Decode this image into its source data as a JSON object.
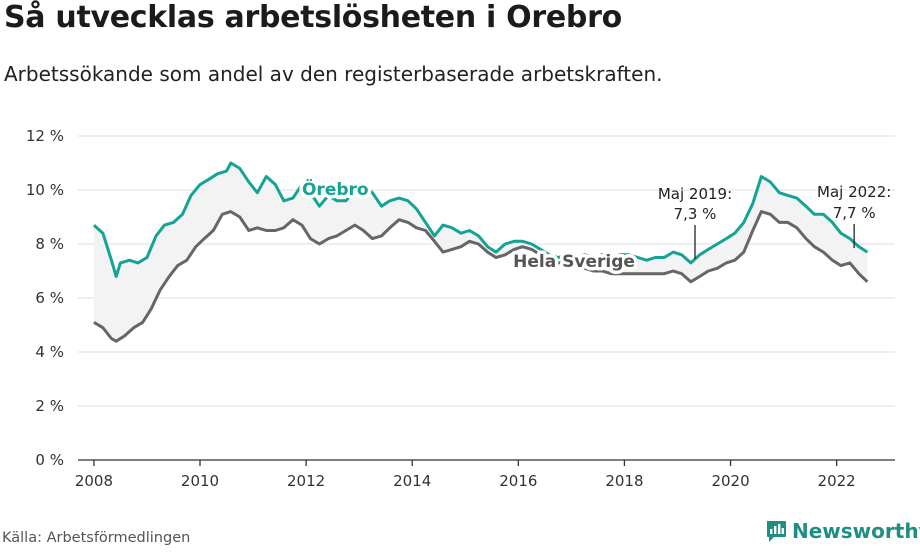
{
  "header": {
    "title": "Så utvecklas arbetslösheten i Orebro",
    "subtitle": "Arbetssökande som andel av den registerbaserade arbetskraften."
  },
  "footer": {
    "source": "Källa: Arbetsförmedlingen",
    "brand": "Newsworthy",
    "brand_icon": "chart-logo-icon"
  },
  "colors": {
    "orebro": "#14a394",
    "sverige": "#666666",
    "fill": "#f3f3f3",
    "grid": "#dddddd",
    "brand": "#1f8f84"
  },
  "chart_data": {
    "type": "line",
    "title": "Så utvecklas arbetslösheten i Orebro",
    "xlabel": "",
    "ylabel": "",
    "xlim": [
      2007.7,
      2023.1
    ],
    "ylim": [
      0,
      12
    ],
    "x_ticks": [
      2008,
      2010,
      2012,
      2014,
      2016,
      2018,
      2020,
      2022
    ],
    "x_tick_labels": [
      "2008",
      "2010",
      "2012",
      "2014",
      "2016",
      "2018",
      "2020",
      "2022"
    ],
    "y_ticks": [
      0,
      2,
      4,
      6,
      8,
      10,
      12
    ],
    "y_tick_labels": [
      "0 %",
      "2 %",
      "4 %",
      "6 %",
      "8 %",
      "10 %",
      "12 %"
    ],
    "series": [
      {
        "name": "Örebro",
        "label": "Örebro",
        "points": [
          [
            2008.0,
            8.7
          ],
          [
            2008.17,
            8.4
          ],
          [
            2008.33,
            7.4
          ],
          [
            2008.42,
            6.8
          ],
          [
            2008.5,
            7.3
          ],
          [
            2008.67,
            7.4
          ],
          [
            2008.83,
            7.3
          ],
          [
            2009.0,
            7.5
          ],
          [
            2009.17,
            8.3
          ],
          [
            2009.33,
            8.7
          ],
          [
            2009.5,
            8.8
          ],
          [
            2009.67,
            9.1
          ],
          [
            2009.83,
            9.8
          ],
          [
            2010.0,
            10.2
          ],
          [
            2010.17,
            10.4
          ],
          [
            2010.33,
            10.6
          ],
          [
            2010.5,
            10.7
          ],
          [
            2010.58,
            11.0
          ],
          [
            2010.75,
            10.8
          ],
          [
            2010.92,
            10.3
          ],
          [
            2011.08,
            9.9
          ],
          [
            2011.25,
            10.5
          ],
          [
            2011.42,
            10.2
          ],
          [
            2011.58,
            9.6
          ],
          [
            2011.75,
            9.7
          ],
          [
            2011.92,
            10.2
          ],
          [
            2012.08,
            9.9
          ],
          [
            2012.25,
            9.4
          ],
          [
            2012.42,
            9.8
          ],
          [
            2012.58,
            9.6
          ],
          [
            2012.75,
            9.6
          ],
          [
            2012.92,
            10.0
          ],
          [
            2013.08,
            10.2
          ],
          [
            2013.25,
            9.9
          ],
          [
            2013.42,
            9.4
          ],
          [
            2013.58,
            9.6
          ],
          [
            2013.75,
            9.7
          ],
          [
            2013.92,
            9.6
          ],
          [
            2014.08,
            9.3
          ],
          [
            2014.25,
            8.8
          ],
          [
            2014.42,
            8.3
          ],
          [
            2014.58,
            8.7
          ],
          [
            2014.75,
            8.6
          ],
          [
            2014.92,
            8.4
          ],
          [
            2015.08,
            8.5
          ],
          [
            2015.25,
            8.3
          ],
          [
            2015.42,
            7.9
          ],
          [
            2015.58,
            7.7
          ],
          [
            2015.75,
            8.0
          ],
          [
            2015.92,
            8.1
          ],
          [
            2016.08,
            8.1
          ],
          [
            2016.25,
            8.0
          ],
          [
            2016.42,
            7.8
          ],
          [
            2016.58,
            7.6
          ],
          [
            2016.75,
            7.5
          ],
          [
            2016.92,
            7.6
          ],
          [
            2017.08,
            7.5
          ],
          [
            2017.25,
            7.6
          ],
          [
            2017.42,
            7.5
          ],
          [
            2017.58,
            7.6
          ],
          [
            2017.75,
            7.5
          ],
          [
            2017.92,
            7.6
          ],
          [
            2018.08,
            7.6
          ],
          [
            2018.25,
            7.5
          ],
          [
            2018.42,
            7.4
          ],
          [
            2018.58,
            7.5
          ],
          [
            2018.75,
            7.5
          ],
          [
            2018.92,
            7.7
          ],
          [
            2019.08,
            7.6
          ],
          [
            2019.25,
            7.3
          ],
          [
            2019.42,
            7.6
          ],
          [
            2019.58,
            7.8
          ],
          [
            2019.75,
            8.0
          ],
          [
            2019.92,
            8.2
          ],
          [
            2020.08,
            8.4
          ],
          [
            2020.25,
            8.8
          ],
          [
            2020.42,
            9.5
          ],
          [
            2020.58,
            10.5
          ],
          [
            2020.75,
            10.3
          ],
          [
            2020.92,
            9.9
          ],
          [
            2021.08,
            9.8
          ],
          [
            2021.25,
            9.7
          ],
          [
            2021.42,
            9.4
          ],
          [
            2021.58,
            9.1
          ],
          [
            2021.75,
            9.1
          ],
          [
            2021.92,
            8.8
          ],
          [
            2022.08,
            8.4
          ],
          [
            2022.25,
            8.2
          ],
          [
            2022.42,
            7.9
          ],
          [
            2022.58,
            7.7
          ]
        ]
      },
      {
        "name": "Hela Sverige",
        "label": "Hela Sverige",
        "points": [
          [
            2008.0,
            5.1
          ],
          [
            2008.17,
            4.9
          ],
          [
            2008.33,
            4.5
          ],
          [
            2008.42,
            4.4
          ],
          [
            2008.58,
            4.6
          ],
          [
            2008.75,
            4.9
          ],
          [
            2008.92,
            5.1
          ],
          [
            2009.08,
            5.6
          ],
          [
            2009.25,
            6.3
          ],
          [
            2009.42,
            6.8
          ],
          [
            2009.58,
            7.2
          ],
          [
            2009.75,
            7.4
          ],
          [
            2009.92,
            7.9
          ],
          [
            2010.08,
            8.2
          ],
          [
            2010.25,
            8.5
          ],
          [
            2010.42,
            9.1
          ],
          [
            2010.58,
            9.2
          ],
          [
            2010.75,
            9.0
          ],
          [
            2010.92,
            8.5
          ],
          [
            2011.08,
            8.6
          ],
          [
            2011.25,
            8.5
          ],
          [
            2011.42,
            8.5
          ],
          [
            2011.58,
            8.6
          ],
          [
            2011.75,
            8.9
          ],
          [
            2011.92,
            8.7
          ],
          [
            2012.08,
            8.2
          ],
          [
            2012.25,
            8.0
          ],
          [
            2012.42,
            8.2
          ],
          [
            2012.58,
            8.3
          ],
          [
            2012.75,
            8.5
          ],
          [
            2012.92,
            8.7
          ],
          [
            2013.08,
            8.5
          ],
          [
            2013.25,
            8.2
          ],
          [
            2013.42,
            8.3
          ],
          [
            2013.58,
            8.6
          ],
          [
            2013.75,
            8.9
          ],
          [
            2013.92,
            8.8
          ],
          [
            2014.08,
            8.6
          ],
          [
            2014.25,
            8.5
          ],
          [
            2014.42,
            8.1
          ],
          [
            2014.58,
            7.7
          ],
          [
            2014.75,
            7.8
          ],
          [
            2014.92,
            7.9
          ],
          [
            2015.08,
            8.1
          ],
          [
            2015.25,
            8.0
          ],
          [
            2015.42,
            7.7
          ],
          [
            2015.58,
            7.5
          ],
          [
            2015.75,
            7.6
          ],
          [
            2015.92,
            7.8
          ],
          [
            2016.08,
            7.9
          ],
          [
            2016.25,
            7.8
          ],
          [
            2016.42,
            7.6
          ],
          [
            2016.58,
            7.4
          ],
          [
            2016.75,
            7.3
          ],
          [
            2016.92,
            7.3
          ],
          [
            2017.08,
            7.2
          ],
          [
            2017.25,
            7.1
          ],
          [
            2017.42,
            7.0
          ],
          [
            2017.58,
            7.0
          ],
          [
            2017.75,
            6.9
          ],
          [
            2017.92,
            6.9
          ],
          [
            2018.08,
            6.9
          ],
          [
            2018.25,
            6.9
          ],
          [
            2018.42,
            6.9
          ],
          [
            2018.58,
            6.9
          ],
          [
            2018.75,
            6.9
          ],
          [
            2018.92,
            7.0
          ],
          [
            2019.08,
            6.9
          ],
          [
            2019.25,
            6.6
          ],
          [
            2019.42,
            6.8
          ],
          [
            2019.58,
            7.0
          ],
          [
            2019.75,
            7.1
          ],
          [
            2019.92,
            7.3
          ],
          [
            2020.08,
            7.4
          ],
          [
            2020.25,
            7.7
          ],
          [
            2020.42,
            8.5
          ],
          [
            2020.58,
            9.2
          ],
          [
            2020.75,
            9.1
          ],
          [
            2020.92,
            8.8
          ],
          [
            2021.08,
            8.8
          ],
          [
            2021.25,
            8.6
          ],
          [
            2021.42,
            8.2
          ],
          [
            2021.58,
            7.9
          ],
          [
            2021.75,
            7.7
          ],
          [
            2021.92,
            7.4
          ],
          [
            2022.08,
            7.2
          ],
          [
            2022.25,
            7.3
          ],
          [
            2022.42,
            6.9
          ],
          [
            2022.58,
            6.6
          ]
        ]
      }
    ],
    "annotations": [
      {
        "label": "Maj 2019:",
        "value_label": "7,3 %",
        "x": 2019.33,
        "y": 7.3
      },
      {
        "label": "Maj 2022:",
        "value_label": "7,7 %",
        "x": 2022.33,
        "y": 7.7
      }
    ]
  }
}
